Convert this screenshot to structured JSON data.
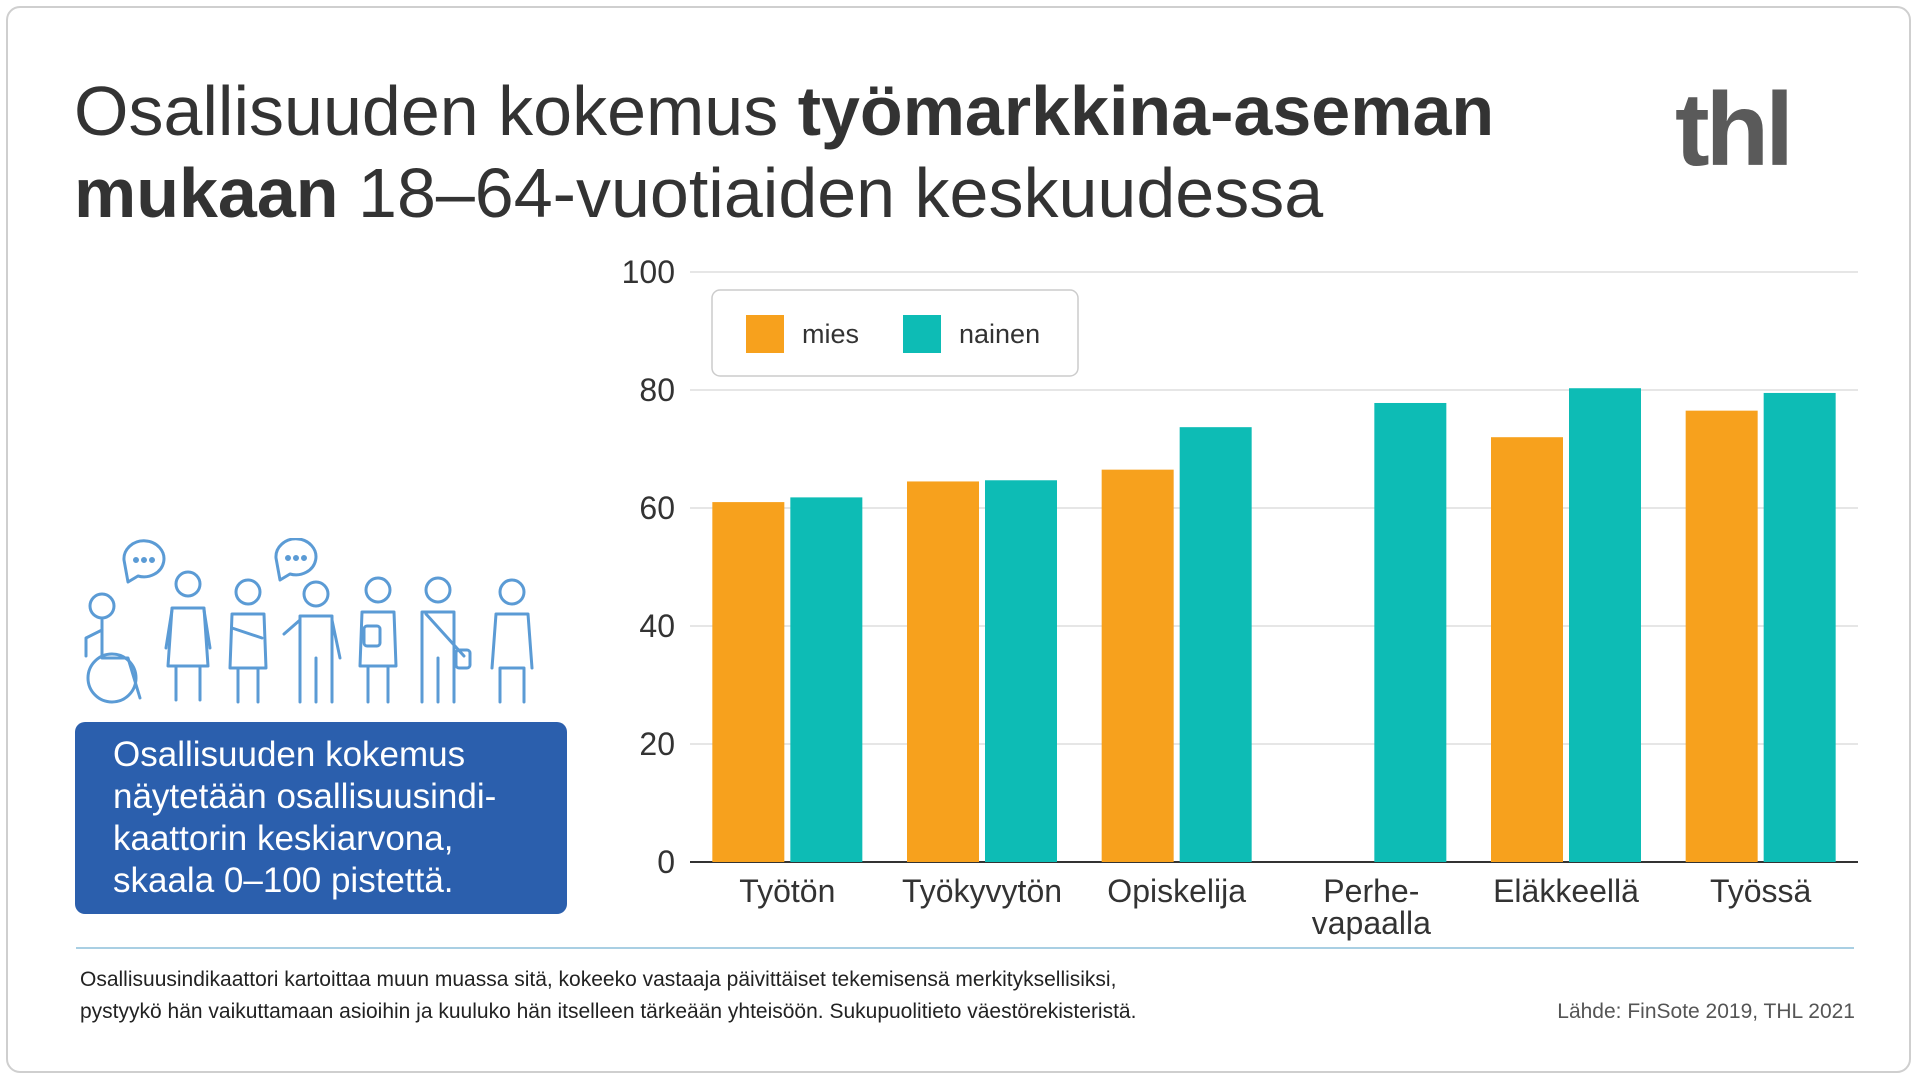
{
  "title": {
    "part1": "Osallisuuden kokemus ",
    "part2": "työmarkkina-aseman mukaan",
    "part3": " 18–64-vuotiaiden keskuudessa"
  },
  "logo": "thl",
  "info_box": {
    "lines": [
      "Osallisuuden kokemus",
      "näytetään osallisuusindi-",
      "kaattorin keskiarvona,",
      "skaala 0–100 pistettä."
    ]
  },
  "footer": {
    "lines": [
      "Osallisuusindikaattori kartoittaa muun muassa sitä, kokeeko vastaaja päivittäiset tekemisensä merkityksellisiksi,",
      "pystyykö hän vaikuttamaan asioihin ja kuuluko hän itselleen tärkeään yhteisöön. Sukupuolitieto väestörekisteristä."
    ],
    "source": "Lähde: FinSote 2019, THL 2021"
  },
  "colors": {
    "mies": "#f7a11d",
    "nainen": "#0dbcb5",
    "info_box": "#2b5fad",
    "icons": "#5b9bd5"
  },
  "icons": [
    "wheelchair-person-icon",
    "speech-bubble-icon",
    "person-icon",
    "crowd-icon"
  ],
  "chart_data": {
    "type": "bar",
    "categories": [
      [
        "Työtön"
      ],
      [
        "Työkyvytön"
      ],
      [
        "Opiskelija"
      ],
      [
        "Perhe-",
        "vapaalla"
      ],
      [
        "Eläkkeellä"
      ],
      [
        "Työssä"
      ]
    ],
    "series": [
      {
        "name": "mies",
        "values": [
          61,
          64.5,
          66.5,
          null,
          72,
          76.5
        ]
      },
      {
        "name": "nainen",
        "values": [
          61.8,
          64.7,
          73.7,
          77.8,
          80.3,
          79.5
        ]
      }
    ],
    "ylim": [
      0,
      100
    ],
    "yticks": [
      "0",
      "20",
      "40",
      "60",
      "80",
      "100"
    ],
    "grid": true,
    "legend": "top-left"
  }
}
